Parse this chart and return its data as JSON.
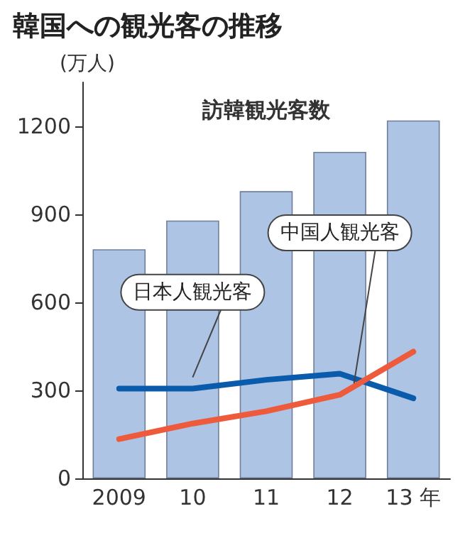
{
  "chart_data": {
    "type": "bar",
    "title": "韓国への観光客の推移",
    "ylabel": "(万人)",
    "categories": [
      "2009",
      "10",
      "11",
      "12",
      "13 年"
    ],
    "series": [
      {
        "name": "訪韓観光客数",
        "color": "#adc4e4",
        "values": [
          781,
          879,
          979,
          1113,
          1220
        ]
      },
      {
        "name": "日本人観光客",
        "type": "line",
        "color": "#0a5bab",
        "values": [
          306,
          306,
          336,
          357,
          273
        ]
      },
      {
        "name": "中国人観光客",
        "type": "line",
        "color": "#ee5a3c",
        "values": [
          134,
          187,
          229,
          285,
          432
        ]
      }
    ],
    "ylim": [
      0,
      1350
    ],
    "yticks": [
      0,
      300,
      600,
      900,
      1200
    ],
    "grid": false,
    "legend": false,
    "marker": "none",
    "line_style": "solid"
  }
}
